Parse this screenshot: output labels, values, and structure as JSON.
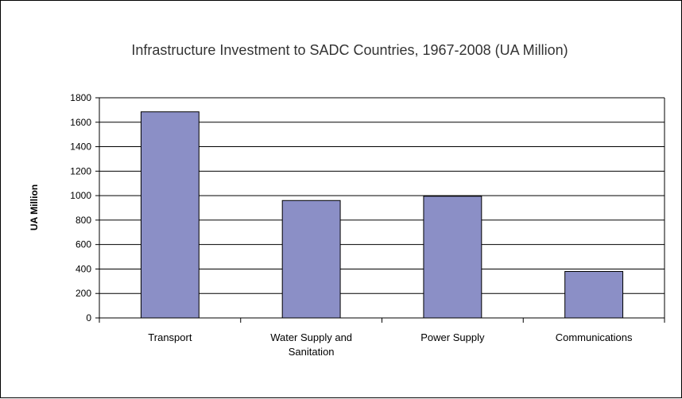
{
  "chart_data": {
    "type": "bar",
    "title": "Infrastructure Investment to SADC Countries, 1967-2008 (UA Million)",
    "xlabel": "",
    "ylabel": "UA Million",
    "categories": [
      "Transport",
      "Water Supply and Sanitation",
      "Power Supply",
      "Communications"
    ],
    "category_label_lines": [
      [
        "Transport"
      ],
      [
        "Water Supply and",
        "Sanitation"
      ],
      [
        "Power Supply"
      ],
      [
        "Communications"
      ]
    ],
    "values": [
      1685,
      960,
      995,
      380
    ],
    "ylim": [
      0,
      1800
    ],
    "yticks": [
      0,
      200,
      400,
      600,
      800,
      1000,
      1200,
      1400,
      1600,
      1800
    ],
    "grid": true,
    "legend": "none",
    "colors": {
      "bar": "#8b8fc6",
      "bar_stroke": "#000000",
      "grid": "#000000",
      "title": "#333333"
    }
  }
}
